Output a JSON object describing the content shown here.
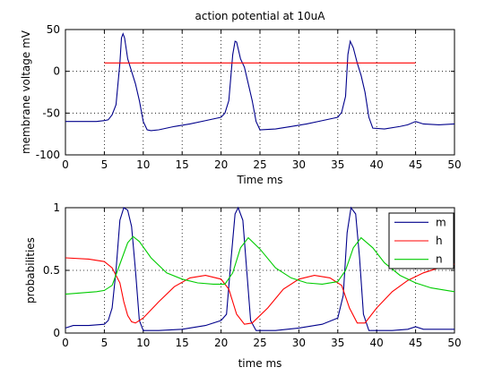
{
  "chart_data": [
    {
      "type": "line",
      "title": "action potential at 10uA",
      "xlabel": "Time ms",
      "ylabel": "membrane voltage mV",
      "xlim": [
        0,
        50
      ],
      "ylim": [
        -100,
        50
      ],
      "xticks": [
        0,
        5,
        10,
        15,
        20,
        25,
        30,
        35,
        40,
        45,
        50
      ],
      "yticks": [
        50,
        0,
        -50,
        -100
      ],
      "grid": true,
      "legend": null,
      "series": [
        {
          "color": "#00008B",
          "points": [
            [
              0,
              -60
            ],
            [
              2,
              -60
            ],
            [
              4,
              -60
            ],
            [
              5,
              -59
            ],
            [
              5.5,
              -58
            ],
            [
              6,
              -52
            ],
            [
              6.5,
              -40
            ],
            [
              7,
              10
            ],
            [
              7.2,
              40
            ],
            [
              7.4,
              45
            ],
            [
              7.6,
              40
            ],
            [
              8,
              15
            ],
            [
              8.5,
              0
            ],
            [
              9,
              -15
            ],
            [
              9.5,
              -35
            ],
            [
              10,
              -60
            ],
            [
              10.5,
              -70
            ],
            [
              11,
              -71
            ],
            [
              12,
              -70
            ],
            [
              14,
              -66
            ],
            [
              16,
              -63
            ],
            [
              18,
              -59
            ],
            [
              19,
              -57
            ],
            [
              20,
              -55
            ],
            [
              20.5,
              -50
            ],
            [
              21,
              -35
            ],
            [
              21.5,
              20
            ],
            [
              21.8,
              36
            ],
            [
              22,
              35
            ],
            [
              22.5,
              15
            ],
            [
              23,
              5
            ],
            [
              23.5,
              -15
            ],
            [
              24,
              -35
            ],
            [
              24.5,
              -60
            ],
            [
              25,
              -70
            ],
            [
              27,
              -69
            ],
            [
              29,
              -66
            ],
            [
              31,
              -63
            ],
            [
              33,
              -59
            ],
            [
              34,
              -57
            ],
            [
              35,
              -55
            ],
            [
              35.5,
              -49
            ],
            [
              36,
              -30
            ],
            [
              36.3,
              20
            ],
            [
              36.6,
              36
            ],
            [
              37,
              28
            ],
            [
              37.5,
              10
            ],
            [
              38,
              -5
            ],
            [
              38.5,
              -25
            ],
            [
              39,
              -55
            ],
            [
              39.5,
              -68
            ],
            [
              41,
              -69
            ],
            [
              43,
              -66
            ],
            [
              44,
              -64
            ],
            [
              45,
              -60
            ],
            [
              46,
              -63
            ],
            [
              48,
              -64
            ],
            [
              50,
              -63
            ]
          ]
        },
        {
          "color": "#FF0000",
          "points": [
            [
              5,
              10
            ],
            [
              45,
              10
            ]
          ]
        }
      ]
    },
    {
      "type": "line",
      "title": "",
      "xlabel": "time ms",
      "ylabel": "probabilities",
      "xlim": [
        0,
        50
      ],
      "ylim": [
        0,
        1
      ],
      "xticks": [
        0,
        5,
        10,
        15,
        20,
        25,
        30,
        35,
        40,
        45,
        50
      ],
      "yticks": [
        1,
        0.5,
        0
      ],
      "grid": true,
      "legend": "top-right",
      "series": [
        {
          "name": "m",
          "color": "#00008B",
          "points": [
            [
              0,
              0.04
            ],
            [
              1,
              0.06
            ],
            [
              3,
              0.06
            ],
            [
              5,
              0.07
            ],
            [
              5.5,
              0.1
            ],
            [
              6,
              0.2
            ],
            [
              6.5,
              0.5
            ],
            [
              7,
              0.9
            ],
            [
              7.5,
              1.0
            ],
            [
              8,
              0.98
            ],
            [
              8.5,
              0.85
            ],
            [
              9,
              0.5
            ],
            [
              9.5,
              0.1
            ],
            [
              10,
              0.02
            ],
            [
              12,
              0.02
            ],
            [
              15,
              0.03
            ],
            [
              18,
              0.06
            ],
            [
              20,
              0.1
            ],
            [
              20.7,
              0.15
            ],
            [
              21.3,
              0.6
            ],
            [
              21.8,
              0.95
            ],
            [
              22.2,
              1.0
            ],
            [
              22.8,
              0.9
            ],
            [
              23.3,
              0.5
            ],
            [
              23.8,
              0.1
            ],
            [
              24.5,
              0.02
            ],
            [
              27,
              0.02
            ],
            [
              30,
              0.04
            ],
            [
              33,
              0.07
            ],
            [
              35,
              0.12
            ],
            [
              35.7,
              0.3
            ],
            [
              36.2,
              0.8
            ],
            [
              36.7,
              1.0
            ],
            [
              37.3,
              0.95
            ],
            [
              37.8,
              0.6
            ],
            [
              38.3,
              0.15
            ],
            [
              39,
              0.02
            ],
            [
              42,
              0.02
            ],
            [
              44,
              0.03
            ],
            [
              45,
              0.05
            ],
            [
              46,
              0.03
            ],
            [
              48,
              0.03
            ],
            [
              50,
              0.03
            ]
          ]
        },
        {
          "name": "h",
          "color": "#FF0000",
          "points": [
            [
              0,
              0.6
            ],
            [
              3,
              0.59
            ],
            [
              5,
              0.57
            ],
            [
              6,
              0.52
            ],
            [
              7,
              0.4
            ],
            [
              7.5,
              0.25
            ],
            [
              8,
              0.14
            ],
            [
              8.5,
              0.09
            ],
            [
              9,
              0.08
            ],
            [
              10,
              0.12
            ],
            [
              12,
              0.25
            ],
            [
              14,
              0.37
            ],
            [
              16,
              0.44
            ],
            [
              18,
              0.46
            ],
            [
              20,
              0.43
            ],
            [
              21,
              0.35
            ],
            [
              22,
              0.15
            ],
            [
              23,
              0.07
            ],
            [
              24,
              0.08
            ],
            [
              26,
              0.2
            ],
            [
              28,
              0.35
            ],
            [
              30,
              0.43
            ],
            [
              32,
              0.46
            ],
            [
              34,
              0.44
            ],
            [
              35.5,
              0.38
            ],
            [
              36.5,
              0.2
            ],
            [
              37.5,
              0.08
            ],
            [
              38.5,
              0.08
            ],
            [
              40,
              0.2
            ],
            [
              42,
              0.33
            ],
            [
              44,
              0.42
            ],
            [
              46,
              0.48
            ],
            [
              48,
              0.52
            ],
            [
              50,
              0.55
            ]
          ]
        },
        {
          "name": "n",
          "color": "#00CC00",
          "points": [
            [
              0,
              0.31
            ],
            [
              2,
              0.32
            ],
            [
              4,
              0.33
            ],
            [
              5,
              0.34
            ],
            [
              6,
              0.38
            ],
            [
              7,
              0.55
            ],
            [
              8,
              0.72
            ],
            [
              8.7,
              0.77
            ],
            [
              9.5,
              0.73
            ],
            [
              11,
              0.6
            ],
            [
              13,
              0.48
            ],
            [
              15,
              0.43
            ],
            [
              17,
              0.4
            ],
            [
              19,
              0.39
            ],
            [
              20.5,
              0.39
            ],
            [
              21.5,
              0.48
            ],
            [
              22.5,
              0.68
            ],
            [
              23.5,
              0.76
            ],
            [
              25,
              0.67
            ],
            [
              27,
              0.52
            ],
            [
              29,
              0.44
            ],
            [
              31,
              0.4
            ],
            [
              33,
              0.39
            ],
            [
              35,
              0.41
            ],
            [
              36,
              0.5
            ],
            [
              37,
              0.68
            ],
            [
              38,
              0.76
            ],
            [
              39.5,
              0.68
            ],
            [
              41,
              0.56
            ],
            [
              43,
              0.46
            ],
            [
              45,
              0.4
            ],
            [
              47,
              0.36
            ],
            [
              49,
              0.34
            ],
            [
              50,
              0.33
            ]
          ]
        }
      ]
    }
  ]
}
